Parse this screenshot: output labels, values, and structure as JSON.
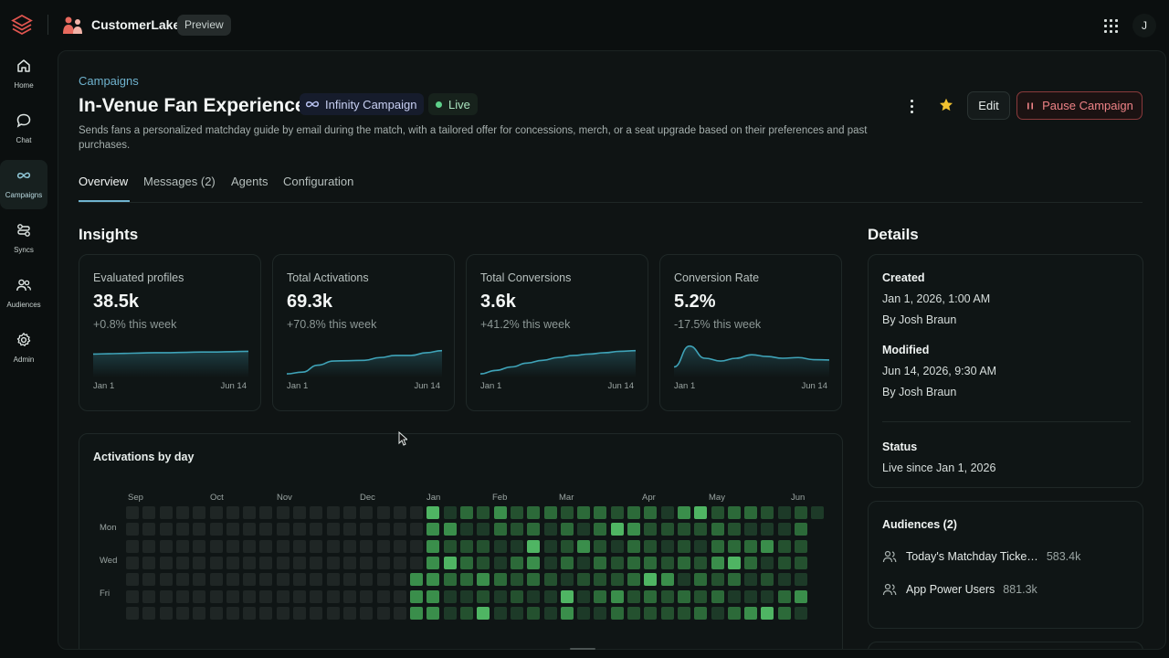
{
  "topbar": {
    "app_name": "CustomerLake",
    "preview_label": "Preview",
    "user_initial": "J"
  },
  "sidebar": {
    "items": [
      {
        "label": "Home",
        "icon": "home-icon"
      },
      {
        "label": "Chat",
        "icon": "chat-icon"
      },
      {
        "label": "Campaigns",
        "icon": "infinity-icon",
        "active": true
      },
      {
        "label": "Syncs",
        "icon": "syncs-icon"
      },
      {
        "label": "Audiences",
        "icon": "users-icon"
      },
      {
        "label": "Admin",
        "icon": "gear-icon"
      }
    ]
  },
  "header": {
    "breadcrumb": "Campaigns",
    "title": "In-Venue Fan Experience",
    "type_badge": "Infinity Campaign",
    "status_badge": "Live",
    "description": "Sends fans a personalized matchday guide by email during the match, with a tailored offer for concessions, merch, or a seat upgrade based on their preferences and past purchases.",
    "edit_label": "Edit",
    "pause_label": "Pause Campaign"
  },
  "tabs": [
    {
      "label": "Overview",
      "active": true
    },
    {
      "label": "Messages (2)"
    },
    {
      "label": "Agents"
    },
    {
      "label": "Configuration"
    }
  ],
  "insights": {
    "title": "Insights",
    "cards": [
      {
        "label": "Evaluated profiles",
        "value": "38.5k",
        "change": "+0.8% this week",
        "start": "Jan 1",
        "end": "Jun 14",
        "trend": [
          0.62,
          0.63,
          0.64,
          0.65,
          0.66,
          0.66,
          0.67,
          0.68,
          0.68,
          0.69,
          0.7
        ]
      },
      {
        "label": "Total Activations",
        "value": "69.3k",
        "change": "+70.8% this week",
        "start": "Jan 1",
        "end": "Jun 14",
        "trend": [
          0.05,
          0.1,
          0.3,
          0.42,
          0.43,
          0.44,
          0.52,
          0.58,
          0.58,
          0.66,
          0.72
        ]
      },
      {
        "label": "Total Conversions",
        "value": "3.6k",
        "change": "+41.2% this week",
        "start": "Jan 1",
        "end": "Jun 14",
        "trend": [
          0.05,
          0.15,
          0.25,
          0.36,
          0.44,
          0.52,
          0.58,
          0.62,
          0.66,
          0.7,
          0.72
        ]
      },
      {
        "label": "Conversion Rate",
        "value": "5.2%",
        "change": "-17.5% this week",
        "start": "Jan 1",
        "end": "Jun 14",
        "trend": [
          0.25,
          0.85,
          0.5,
          0.42,
          0.5,
          0.6,
          0.55,
          0.5,
          0.52,
          0.46,
          0.45
        ]
      }
    ]
  },
  "activations": {
    "title": "Activations by day",
    "months": [
      "Sep",
      "Oct",
      "Nov",
      "Dec",
      "Jan",
      "Feb",
      "Mar",
      "Apr",
      "May",
      "Jun"
    ],
    "days": [
      "Mon",
      "Wed",
      "Fri"
    ]
  },
  "details": {
    "title": "Details",
    "created_label": "Created",
    "created_value": "Jan 1, 2026, 1:00 AM",
    "created_by": "By Josh Braun",
    "modified_label": "Modified",
    "modified_value": "Jun 14, 2026, 9:30 AM",
    "modified_by": "By Josh Braun",
    "status_label": "Status",
    "status_value": "Live since Jan 1, 2026"
  },
  "audiences": {
    "title": "Audiences (2)",
    "items": [
      {
        "name": "Today's Matchday Ticke…",
        "count": "583.4k"
      },
      {
        "name": "App Power Users",
        "count": "881.3k"
      }
    ]
  },
  "colors": {
    "accent": "#6fb3cf",
    "live": "#5ed08a",
    "danger": "#ee8286",
    "star": "#f2c230",
    "spark": "#3fa3b8"
  }
}
